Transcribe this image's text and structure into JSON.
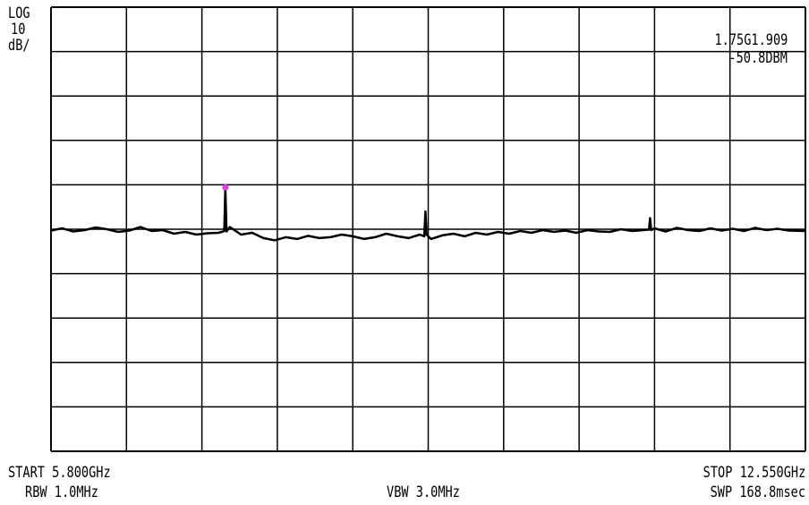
{
  "scale": {
    "line1": "LOG",
    "line2": "10",
    "line3": "dB/"
  },
  "marker": {
    "frequency": "1.75G1.909",
    "level": "-50.8DBM"
  },
  "footer": {
    "start": "START 5.800GHz",
    "stop": "STOP 12.550GHz",
    "rbw": "RBW 1.0MHz",
    "vbw": "VBW 3.0MHz",
    "swp": "SWP 168.8msec"
  },
  "colors": {
    "trace": "#000000",
    "grid": "#000000",
    "marker": "#e040e0"
  },
  "chart_data": {
    "type": "line",
    "title": "",
    "xlabel": "",
    "ylabel": "",
    "x_range_ghz": [
      5.8,
      12.55
    ],
    "y_range_div": [
      -5,
      5
    ],
    "grid": {
      "x_divisions": 10,
      "y_divisions": 10
    },
    "series": [
      {
        "x": [
          5.8,
          5.9,
          6.0,
          6.1,
          6.2,
          6.3,
          6.4,
          6.5,
          6.6,
          6.7,
          6.8,
          6.9,
          7.0,
          7.1,
          7.2,
          7.3,
          7.35,
          7.36,
          7.37,
          7.4,
          7.5,
          7.6,
          7.7,
          7.8,
          7.9,
          8.0,
          8.1,
          8.2,
          8.3,
          8.4,
          8.5,
          8.6,
          8.7,
          8.8,
          8.9,
          9.0,
          9.1,
          9.14,
          9.15,
          9.16,
          9.2,
          9.3,
          9.4,
          9.5,
          9.6,
          9.7,
          9.8,
          9.9,
          10.0,
          10.1,
          10.2,
          10.3,
          10.4,
          10.5,
          10.6,
          10.7,
          10.8,
          10.9,
          11.0,
          11.1,
          11.15,
          11.16,
          11.17,
          11.2,
          11.3,
          11.4,
          11.5,
          11.6,
          11.7,
          11.8,
          11.9,
          12.0,
          12.1,
          12.2,
          12.3,
          12.4,
          12.55
        ],
        "y": [
          -0.03,
          0.02,
          -0.05,
          -0.02,
          0.04,
          0.0,
          -0.06,
          -0.03,
          0.05,
          -0.04,
          -0.02,
          -0.1,
          -0.06,
          -0.12,
          -0.09,
          -0.08,
          -0.04,
          0.94,
          -0.05,
          0.05,
          -0.12,
          -0.08,
          -0.2,
          -0.25,
          -0.18,
          -0.22,
          -0.15,
          -0.2,
          -0.18,
          -0.12,
          -0.16,
          -0.22,
          -0.18,
          -0.1,
          -0.16,
          -0.2,
          -0.12,
          -0.16,
          0.4,
          -0.12,
          -0.22,
          -0.14,
          -0.1,
          -0.16,
          -0.08,
          -0.12,
          -0.06,
          -0.1,
          -0.04,
          -0.08,
          -0.02,
          -0.06,
          -0.03,
          -0.08,
          -0.02,
          -0.05,
          -0.06,
          0.0,
          -0.04,
          -0.02,
          -0.01,
          0.25,
          -0.02,
          0.02,
          -0.05,
          0.03,
          -0.02,
          -0.04,
          0.02,
          -0.03,
          0.01,
          -0.04,
          0.03,
          -0.02,
          0.01,
          -0.03,
          -0.04
        ]
      }
    ],
    "marker_point": {
      "x": 7.36,
      "y": 0.94
    }
  }
}
